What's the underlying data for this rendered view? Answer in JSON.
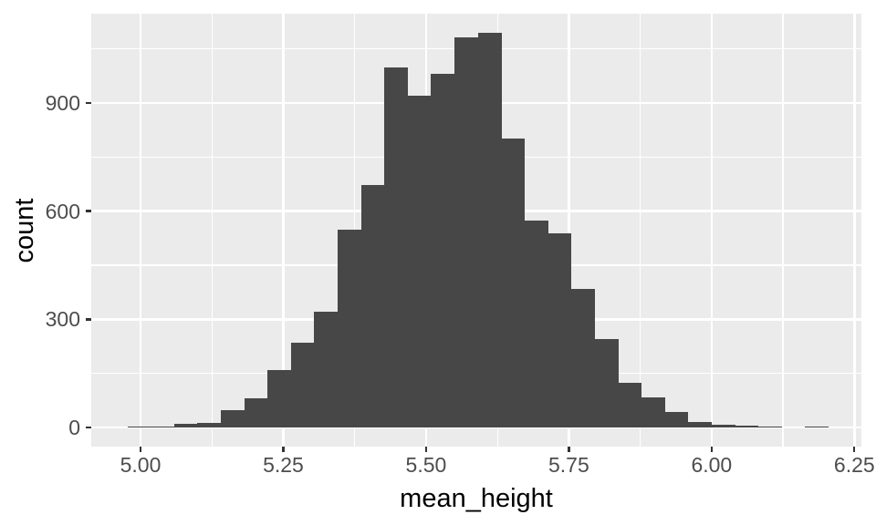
{
  "figure": {
    "background": "#FFFFFF",
    "panel_background": "#EBEBEB",
    "gridline_color": "#FFFFFF",
    "bar_color": "#474747",
    "tick_mark_color": "#333333",
    "tick_label_color": "#4D4D4D",
    "axis_title_color": "#000000"
  },
  "chart_data": {
    "type": "bar",
    "subtype": "histogram",
    "title": "",
    "xlabel": "mean_height",
    "ylabel": "count",
    "bin_start": 4.977,
    "bin_width": 0.0409,
    "counts": [
      2,
      2,
      9,
      13,
      47,
      82,
      159,
      236,
      320,
      548,
      672,
      999,
      920,
      981,
      1082,
      1094,
      801,
      573,
      539,
      384,
      246,
      124,
      84,
      42,
      14,
      8,
      4,
      2,
      0,
      2
    ],
    "x_ticks": {
      "values": [
        5.0,
        5.25,
        5.5,
        5.75,
        6.0,
        6.25
      ],
      "labels": [
        "5.00",
        "5.25",
        "5.50",
        "5.75",
        "6.00",
        "6.25"
      ]
    },
    "y_ticks": {
      "values": [
        0,
        300,
        600,
        900
      ],
      "labels": [
        "0",
        "300",
        "600",
        "900"
      ]
    },
    "x_minor_gridlines": [
      5.125,
      5.375,
      5.625,
      5.875,
      6.125
    ],
    "y_minor_gridlines": [
      150,
      450,
      750,
      1050
    ],
    "xlim": [
      4.9137,
      6.2623
    ],
    "ylim": [
      -53.1,
      1147.6
    ],
    "grid": true,
    "legend": false
  }
}
